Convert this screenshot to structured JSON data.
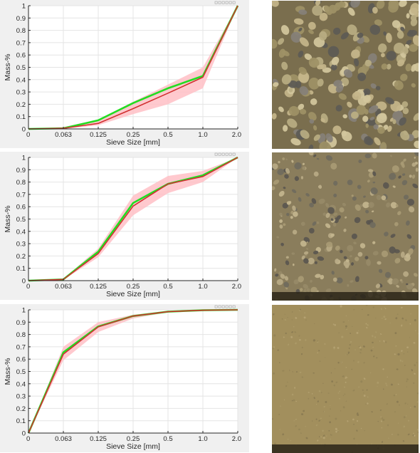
{
  "chart_data": [
    {
      "type": "line",
      "xlabel": "Sieve Size [mm]",
      "ylabel": "Mass-%",
      "categories": [
        "0",
        "0.063",
        "0.125",
        "0.25",
        "0.5",
        "1.0",
        "2.0"
      ],
      "yticks": [
        "0",
        "0.1",
        "0.2",
        "0.3",
        "0.4",
        "0.5",
        "0.6",
        "0.7",
        "0.8",
        "0.9",
        "1"
      ],
      "ylim": [
        0,
        1
      ],
      "grid": true,
      "band": {
        "lower": [
          0,
          0.0,
          0.03,
          0.12,
          0.2,
          0.33,
          1.0
        ],
        "upper": [
          0,
          0.015,
          0.075,
          0.22,
          0.36,
          0.5,
          1.0
        ],
        "color": "#ffc0c6"
      },
      "series": [
        {
          "values": [
            0,
            0.005,
            0.07,
            0.21,
            0.33,
            0.43,
            1.0
          ],
          "color": "#22dd22"
        },
        {
          "values": [
            0,
            0.005,
            0.045,
            0.165,
            0.29,
            0.42,
            1.0
          ],
          "color": "#d03030"
        }
      ]
    },
    {
      "type": "line",
      "xlabel": "Sieve Size [mm]",
      "ylabel": "Mass-%",
      "categories": [
        "0",
        "0.063",
        "0.125",
        "0.25",
        "0.5",
        "1.0",
        "2.0"
      ],
      "yticks": [
        "0",
        "0.1",
        "0.2",
        "0.3",
        "0.4",
        "0.5",
        "0.6",
        "0.7",
        "0.8",
        "0.9",
        "1"
      ],
      "ylim": [
        0,
        1
      ],
      "grid": true,
      "band": {
        "lower": [
          0,
          0.005,
          0.19,
          0.53,
          0.71,
          0.8,
          1.0
        ],
        "upper": [
          0,
          0.015,
          0.26,
          0.69,
          0.85,
          0.89,
          1.0
        ],
        "color": "#ffc0c6"
      },
      "series": [
        {
          "values": [
            0,
            0.01,
            0.235,
            0.63,
            0.785,
            0.855,
            1.0
          ],
          "color": "#22dd22"
        },
        {
          "values": [
            0,
            0.01,
            0.22,
            0.605,
            0.785,
            0.845,
            1.0
          ],
          "color": "#d03030"
        }
      ]
    },
    {
      "type": "line",
      "xlabel": "Sieve Size [mm]",
      "ylabel": "Mass-%",
      "categories": [
        "0",
        "0.063",
        "0.125",
        "0.25",
        "0.5",
        "1.0",
        "2.0"
      ],
      "yticks": [
        "0",
        "0.1",
        "0.2",
        "0.3",
        "0.4",
        "0.5",
        "0.6",
        "0.7",
        "0.8",
        "0.9",
        "1"
      ],
      "ylim": [
        0,
        1
      ],
      "grid": true,
      "band": {
        "lower": [
          0,
          0.59,
          0.82,
          0.93,
          0.98,
          0.995,
          1.0
        ],
        "upper": [
          0,
          0.7,
          0.9,
          0.96,
          0.99,
          1.0,
          1.0
        ],
        "color": "#ffc0c6"
      },
      "series": [
        {
          "values": [
            0,
            0.655,
            0.865,
            0.95,
            0.985,
            0.997,
            1.0
          ],
          "color": "#22dd22"
        },
        {
          "values": [
            0,
            0.64,
            0.862,
            0.95,
            0.985,
            0.997,
            1.0
          ],
          "color": "#d03030"
        }
      ]
    }
  ],
  "textures": [
    {
      "base": "#7a6e4e",
      "grains": [
        "#b9ac82",
        "#9e9166",
        "#d2c79d",
        "#5c5a55",
        "#868078",
        "#c4b58a"
      ],
      "count": 230,
      "minR": 3,
      "maxR": 8,
      "dark_bottom": false
    },
    {
      "base": "#8a7d5c",
      "grains": [
        "#a89a74",
        "#c3b58e",
        "#6f6a5d",
        "#978a68",
        "#b8aa86",
        "#5a564f"
      ],
      "count": 260,
      "minR": 1.5,
      "maxR": 5,
      "dark_bottom": true
    },
    {
      "base": "#a28f5d",
      "grains": [
        "#958457",
        "#ad9b69",
        "#8a7b52",
        "#b5a373"
      ],
      "count": 320,
      "minR": 0.6,
      "maxR": 1.6,
      "dark_bottom": true
    }
  ]
}
